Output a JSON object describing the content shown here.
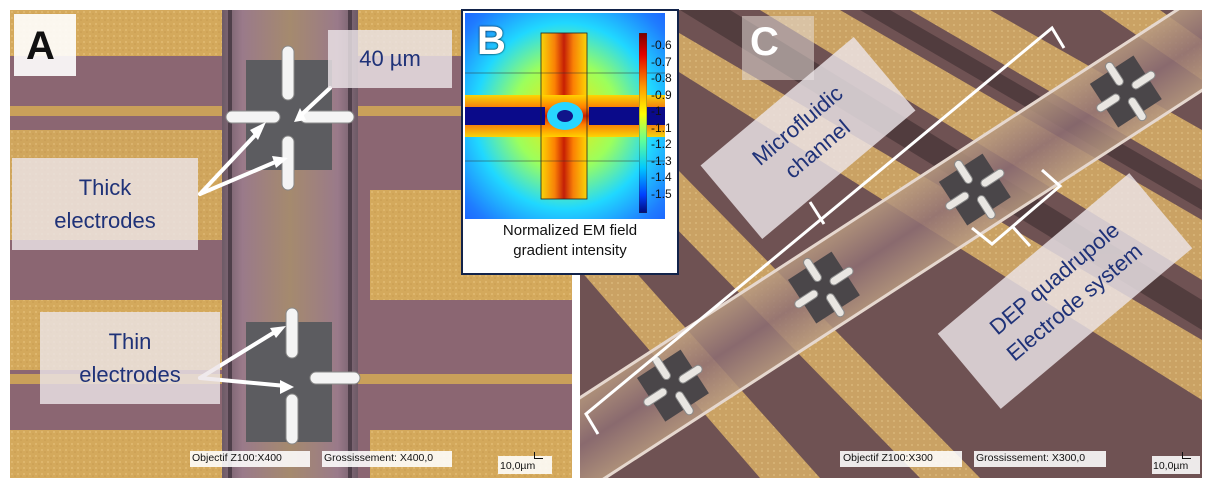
{
  "panel_a": {
    "letter": "A",
    "gap_label": "40 µm",
    "thick_label": [
      "Thick",
      "electrodes"
    ],
    "thin_label": [
      "Thin",
      "electrodes"
    ],
    "objective": "Objectif Z100:X400",
    "magnification": "Grossissement: X400,0",
    "scale_bar": "10,0µm"
  },
  "panel_b": {
    "letter": "B",
    "caption": [
      "Normalized EM field",
      "gradient intensity"
    ],
    "colorbar_ticks": [
      "-0.6",
      "-0.7",
      "-0.8",
      "-0.9",
      "-1",
      "-1.1",
      "-1.2",
      "-1.3",
      "-1.4",
      "-1.5"
    ]
  },
  "panel_c": {
    "letter": "C",
    "channel_label": [
      "Microfluidic",
      "channel"
    ],
    "dep_label": [
      "DEP quadrupole",
      "Electrode system"
    ],
    "objective": "Objectif Z100:X300",
    "magnification": "Grossissement: X300,0",
    "scale_bar": "10,0µm"
  },
  "colors": {
    "label_text": "#1f3278",
    "gold_pad": "#d6aa5e",
    "substrate": "#8a6570"
  }
}
